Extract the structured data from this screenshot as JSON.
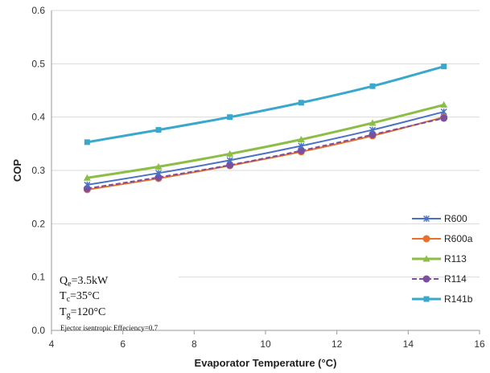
{
  "chart_data": {
    "type": "line",
    "title": "",
    "xlabel": "Evaporator Temperature (°C)",
    "ylabel": "COP",
    "xlim": [
      4,
      16
    ],
    "ylim": [
      0.0,
      0.6
    ],
    "xticks": [
      "4",
      "6",
      "8",
      "10",
      "12",
      "14",
      "16"
    ],
    "yticks": [
      "0.0",
      "0.1",
      "0.2",
      "0.3",
      "0.4",
      "0.5",
      "0.6"
    ],
    "grid": "horizontal",
    "legend_position": "right",
    "x": [
      5,
      7,
      9,
      11,
      13,
      15
    ],
    "series": [
      {
        "name": "R600",
        "color": "#4a72c4",
        "marker": "star",
        "dash": "solid",
        "values": [
          0.273,
          0.295,
          0.319,
          0.346,
          0.376,
          0.41
        ]
      },
      {
        "name": "R600a",
        "color": "#e8702a",
        "marker": "circle",
        "dash": "solid",
        "values": [
          0.264,
          0.285,
          0.309,
          0.335,
          0.365,
          0.4
        ]
      },
      {
        "name": "R113",
        "color": "#8cbd44",
        "marker": "triangle",
        "dash": "solid",
        "values": [
          0.286,
          0.307,
          0.331,
          0.358,
          0.389,
          0.423
        ]
      },
      {
        "name": "R114",
        "color": "#7b4ea0",
        "marker": "circle",
        "dash": "dashed",
        "values": [
          0.266,
          0.287,
          0.31,
          0.337,
          0.367,
          0.398
        ]
      },
      {
        "name": "R141b",
        "color": "#3aa8cc",
        "marker": "square",
        "dash": "solid",
        "values": [
          0.353,
          0.376,
          0.4,
          0.427,
          0.458,
          0.495
        ]
      }
    ],
    "annotations": {
      "qe": {
        "symbol": "Q",
        "sub": "e",
        "value": "=3.5kW"
      },
      "tc": {
        "symbol": "T",
        "sub": "c",
        "value": "=35°C"
      },
      "tg": {
        "symbol": "T",
        "sub": "g",
        "value": "=120°C"
      },
      "ejector": "Ejector isentropic  Effeciency=0.7"
    }
  }
}
